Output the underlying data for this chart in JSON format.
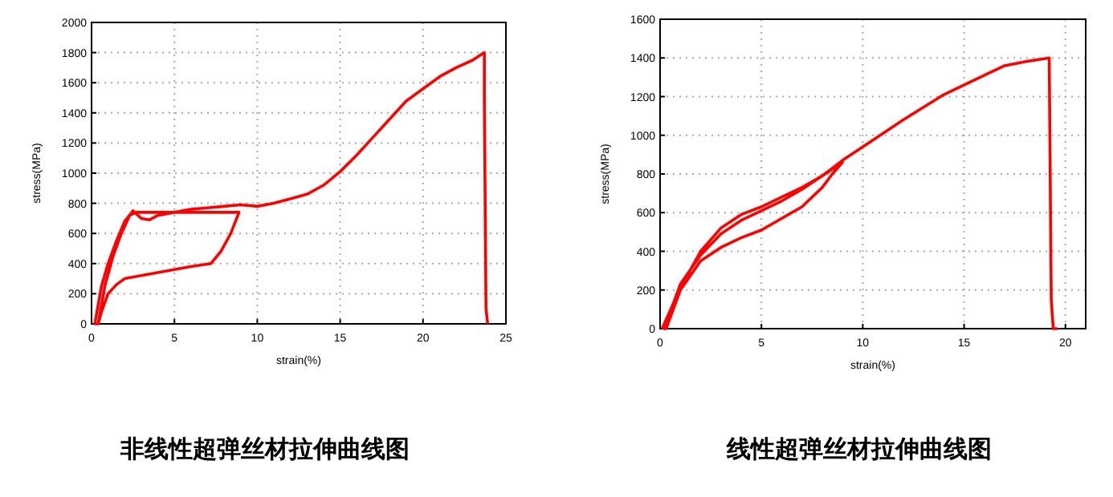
{
  "chart_data": [
    {
      "type": "line",
      "title": "非线性超弹丝材拉伸曲线图",
      "xlabel": "strain(%)",
      "ylabel": "stress(MPa)",
      "xlim": [
        0,
        25
      ],
      "ylim": [
        0,
        2000
      ],
      "xticks": [
        0,
        5,
        10,
        15,
        20,
        25
      ],
      "yticks": [
        0,
        200,
        400,
        600,
        800,
        1000,
        1200,
        1400,
        1600,
        1800,
        2000
      ],
      "grid": true,
      "marker": "none",
      "line_style": "solid",
      "series": [
        {
          "color": "#ff0000",
          "x": [
            0.4,
            0.8,
            1.3,
            1.8,
            2.3,
            2.7,
            4,
            5,
            6,
            7,
            8,
            8.9,
            8.4,
            7.8,
            7.2,
            6,
            5,
            4,
            3,
            2,
            1.5,
            1,
            0.6,
            0.4,
            0.2,
            0.6,
            1,
            1.5,
            2,
            2.5,
            3,
            3.5,
            4,
            5,
            6,
            7,
            8,
            9,
            10,
            11,
            12,
            13,
            14,
            15,
            16,
            17,
            18,
            19,
            20,
            21,
            22,
            23,
            23.7,
            23.7,
            23.8,
            23.9
          ],
          "values": [
            0,
            250,
            450,
            600,
            720,
            740,
            740,
            740,
            740,
            740,
            740,
            740,
            600,
            480,
            400,
            380,
            360,
            340,
            320,
            300,
            260,
            200,
            80,
            0,
            0,
            250,
            400,
            550,
            680,
            750,
            700,
            690,
            720,
            740,
            760,
            770,
            780,
            790,
            780,
            800,
            830,
            860,
            920,
            1010,
            1120,
            1240,
            1360,
            1480,
            1560,
            1640,
            1700,
            1750,
            1800,
            1480,
            100,
            0
          ]
        }
      ]
    },
    {
      "type": "line",
      "title": "线性超弹丝材拉伸曲线图",
      "xlabel": "strain(%)",
      "ylabel": "stress(MPa)",
      "xlim": [
        0,
        21
      ],
      "ylim": [
        0,
        1600
      ],
      "xticks": [
        0,
        5,
        10,
        15,
        20
      ],
      "yticks": [
        0,
        200,
        400,
        600,
        800,
        1000,
        1200,
        1400,
        1600
      ],
      "grid": true,
      "marker": "none",
      "line_style": "solid",
      "series": [
        {
          "color": "#ff0000",
          "x": [
            0.1,
            1,
            2,
            3,
            4,
            5,
            6,
            7,
            8,
            9,
            8.5,
            8,
            7,
            6,
            5,
            4,
            3,
            2,
            1,
            0.3,
            0.2,
            1,
            2,
            3,
            4,
            5,
            6,
            7,
            8,
            9,
            10,
            12,
            14,
            16,
            17,
            18,
            19.2,
            19.3,
            19.4,
            19.6
          ],
          "values": [
            0,
            210,
            400,
            520,
            590,
            630,
            680,
            730,
            790,
            860,
            800,
            730,
            630,
            570,
            510,
            470,
            420,
            350,
            200,
            0,
            0,
            230,
            380,
            490,
            560,
            610,
            660,
            720,
            790,
            870,
            940,
            1080,
            1210,
            1310,
            1360,
            1380,
            1400,
            150,
            0,
            0
          ]
        }
      ]
    }
  ]
}
